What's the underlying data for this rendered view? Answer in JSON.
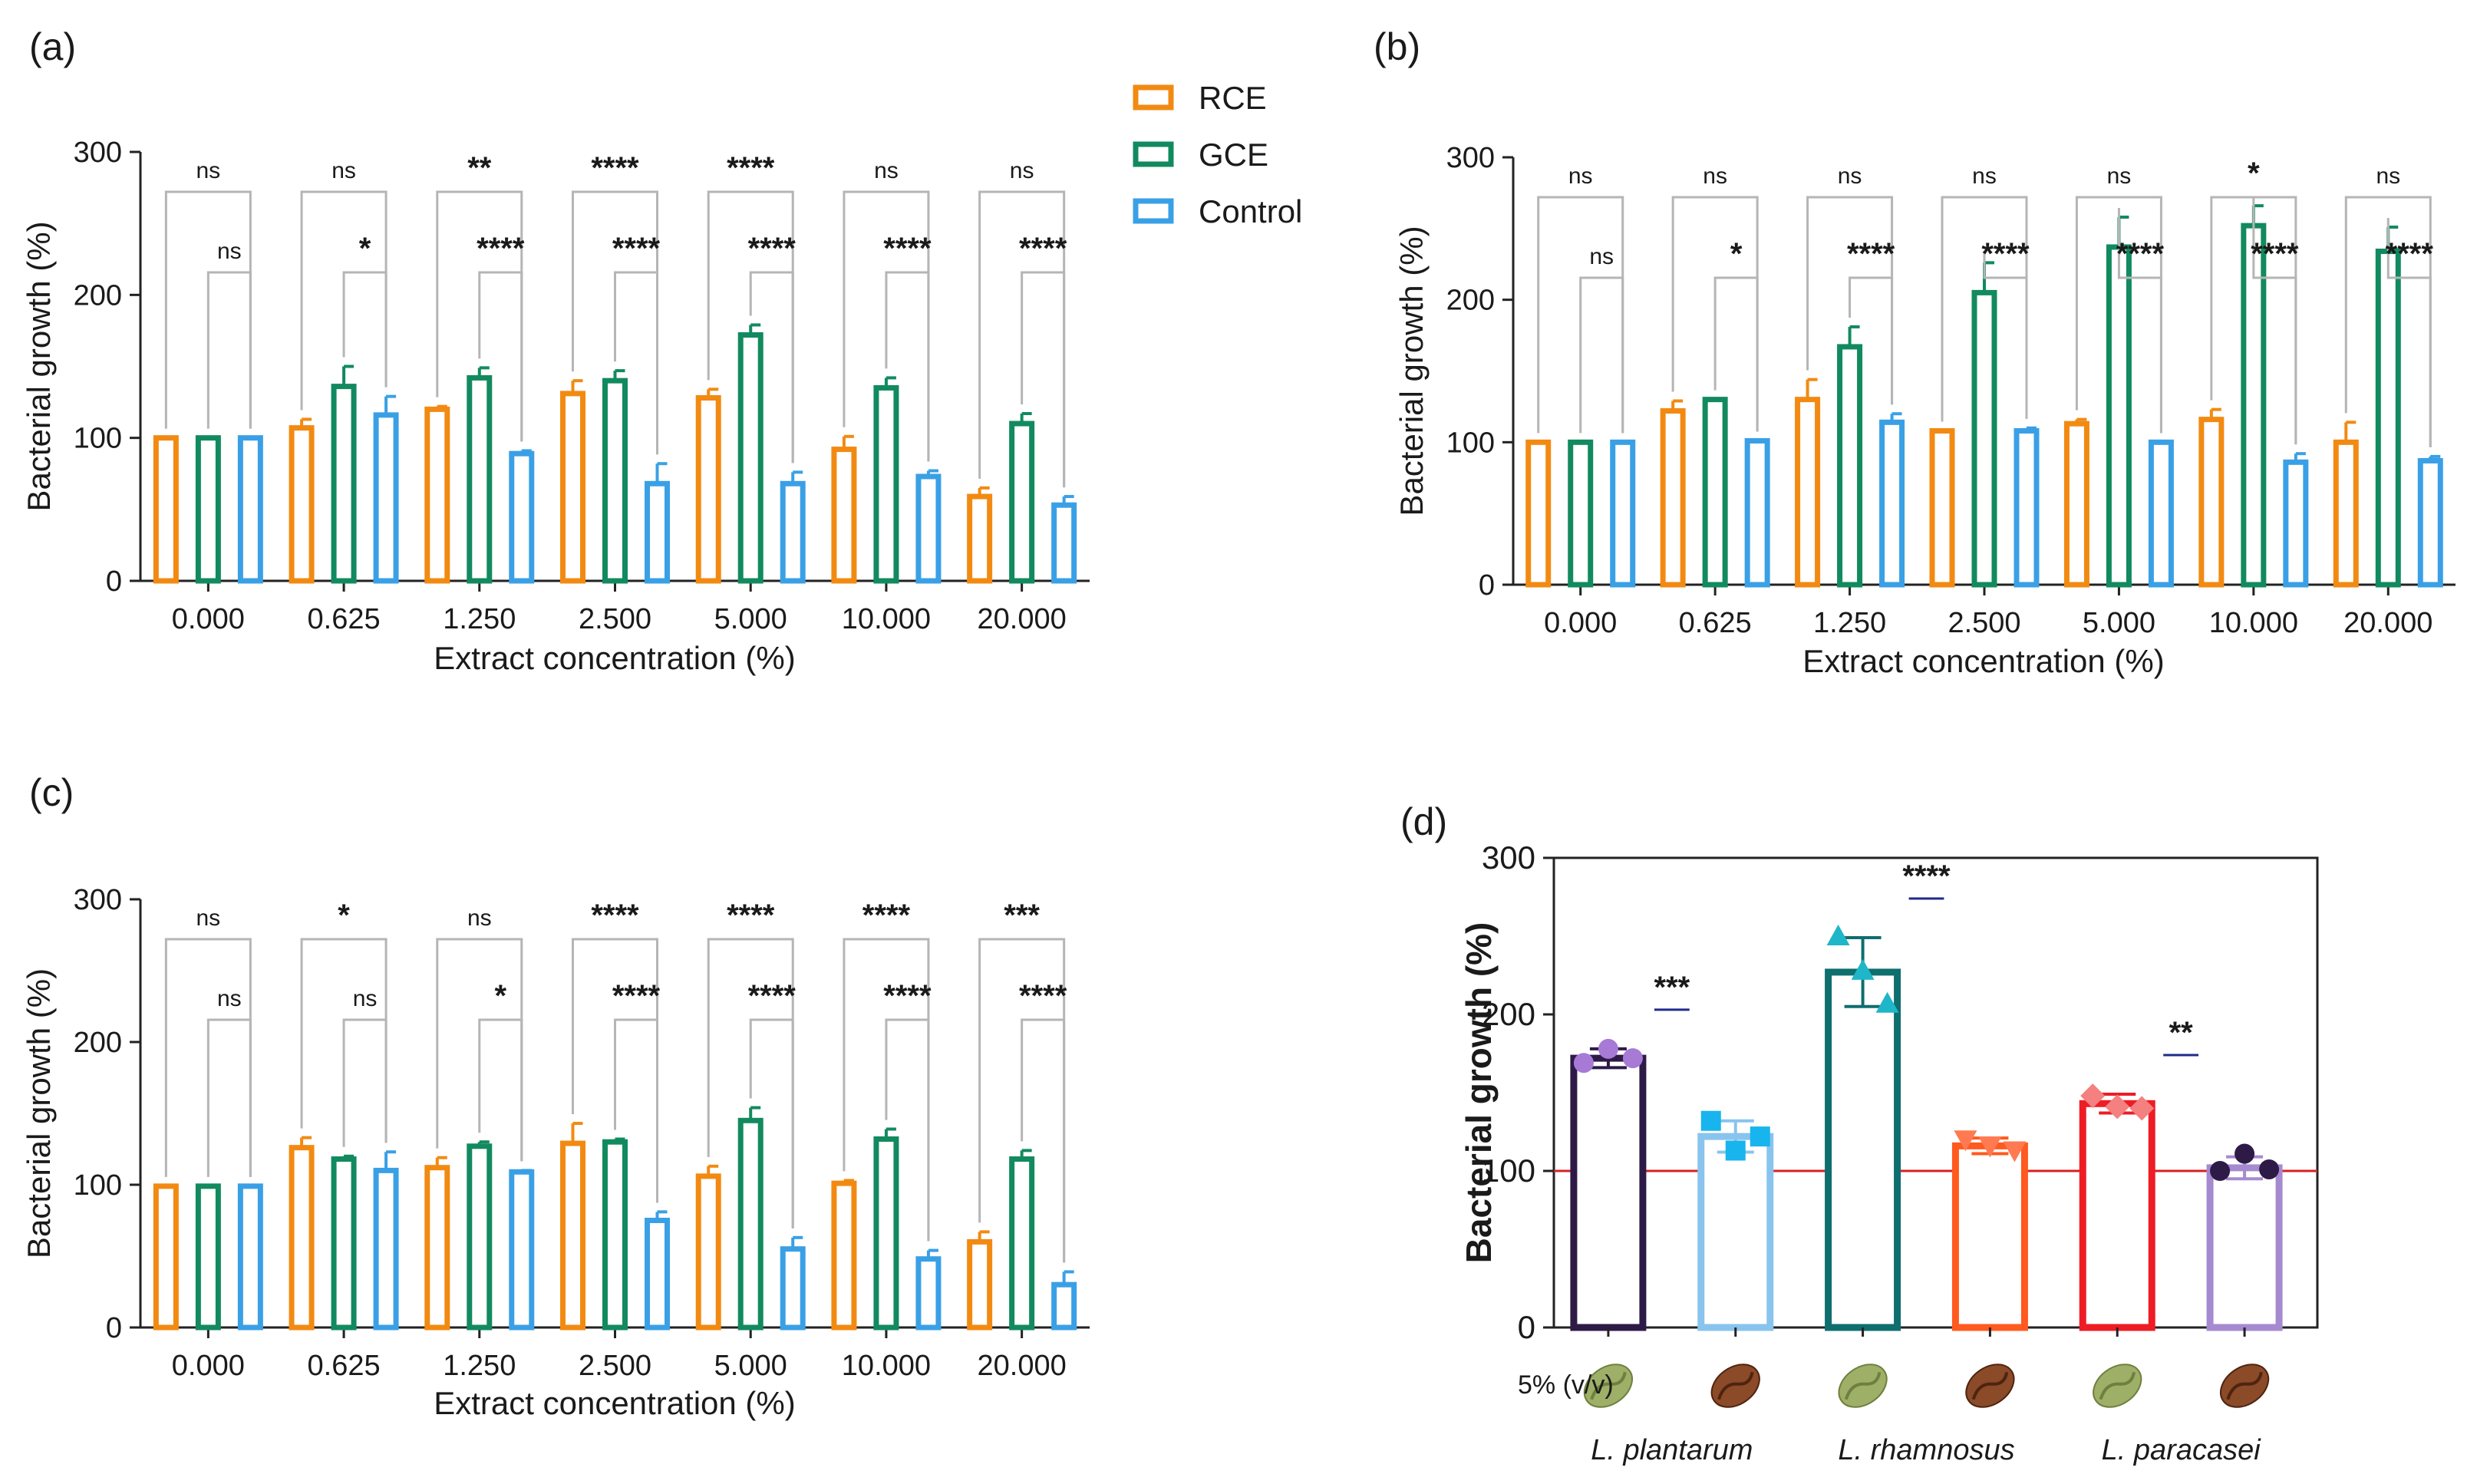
{
  "colors": {
    "RCE": "#f28a12",
    "GCE": "#128a5f",
    "Control": "#3aa0e6",
    "bracket": "#b5b5b5",
    "axis": "#222222"
  },
  "legend": [
    {
      "key": "RCE",
      "label": "RCE"
    },
    {
      "key": "GCE",
      "label": "GCE"
    },
    {
      "key": "Control",
      "label": "Control"
    }
  ],
  "chart_data": [
    {
      "panel": "(a)",
      "type": "bar",
      "xlabel": "Extract concentration (%)",
      "ylabel": "Bacterial growth (%)",
      "ylim": [
        0,
        300
      ],
      "yticks": [
        0,
        100,
        200,
        300
      ],
      "categories": [
        "0.000",
        "0.625",
        "1.250",
        "2.500",
        "5.000",
        "10.000",
        "20.000"
      ],
      "series": [
        {
          "name": "RCE",
          "values": [
            100,
            107,
            120,
            131,
            128,
            92,
            59
          ],
          "errors": [
            0,
            6,
            2,
            9,
            6,
            9,
            6
          ]
        },
        {
          "name": "GCE",
          "values": [
            100,
            136,
            142,
            140,
            172,
            135,
            110
          ],
          "errors": [
            0,
            14,
            7,
            7,
            7,
            7,
            7
          ]
        },
        {
          "name": "Control",
          "values": [
            100,
            116,
            89,
            68,
            68,
            73,
            53
          ],
          "errors": [
            0,
            13,
            2,
            14,
            8,
            4,
            6
          ]
        }
      ],
      "sig_top": [
        "ns",
        "ns",
        "**",
        "****",
        "****",
        "ns",
        "ns"
      ],
      "sig_bottom": [
        "ns",
        "*",
        "****",
        "****",
        "****",
        "****",
        "****"
      ]
    },
    {
      "panel": "(b)",
      "type": "bar",
      "xlabel": "Extract concentration (%)",
      "ylabel": "Bacterial growth (%)",
      "ylim": [
        0,
        300
      ],
      "yticks": [
        0,
        100,
        200,
        300
      ],
      "categories": [
        "0.000",
        "0.625",
        "1.250",
        "2.500",
        "5.000",
        "10.000",
        "20.000"
      ],
      "series": [
        {
          "name": "RCE",
          "values": [
            100,
            122,
            130,
            108,
            113,
            116,
            100
          ],
          "errors": [
            0,
            7,
            14,
            0,
            3,
            7,
            14
          ]
        },
        {
          "name": "GCE",
          "values": [
            100,
            130,
            167,
            205,
            237,
            252,
            234
          ],
          "errors": [
            0,
            0,
            14,
            21,
            21,
            14,
            17
          ]
        },
        {
          "name": "Control",
          "values": [
            100,
            101,
            114,
            108,
            100,
            86,
            87
          ],
          "errors": [
            0,
            0,
            6,
            2,
            0,
            6,
            3
          ]
        }
      ],
      "sig_top": [
        "ns",
        "ns",
        "ns",
        "ns",
        "ns",
        "*",
        "ns"
      ],
      "sig_bottom": [
        "ns",
        "*",
        "****",
        "****",
        "****",
        "****",
        "****"
      ]
    },
    {
      "panel": "(c)",
      "type": "bar",
      "xlabel": "Extract concentration (%)",
      "ylabel": "Bacterial growth (%)",
      "ylim": [
        0,
        300
      ],
      "yticks": [
        0,
        100,
        200,
        300
      ],
      "categories": [
        "0.000",
        "0.625",
        "1.250",
        "2.500",
        "5.000",
        "10.000",
        "20.000"
      ],
      "series": [
        {
          "name": "RCE",
          "values": [
            99,
            126,
            112,
            129,
            106,
            101,
            60
          ],
          "errors": [
            0,
            7,
            7,
            14,
            7,
            2,
            7
          ]
        },
        {
          "name": "GCE",
          "values": [
            99,
            118,
            127,
            130,
            145,
            132,
            118
          ],
          "errors": [
            0,
            2,
            3,
            2,
            9,
            7,
            6
          ]
        },
        {
          "name": "Control",
          "values": [
            99,
            110,
            109,
            75,
            55,
            48,
            30
          ],
          "errors": [
            0,
            13,
            1,
            6,
            8,
            6,
            9
          ]
        }
      ],
      "sig_top": [
        "ns",
        "*",
        "ns",
        "****",
        "****",
        "****",
        "***"
      ],
      "sig_bottom": [
        "ns",
        "ns",
        "*",
        "****",
        "****",
        "****",
        "****"
      ]
    },
    {
      "panel": "(d)",
      "type": "bar",
      "ylabel": "Bacterial growth (%)",
      "ylim": [
        0,
        300
      ],
      "yticks": [
        0,
        100,
        200,
        300
      ],
      "row_label": "5% (v/v)",
      "reference_line": 100,
      "bars": [
        {
          "species": "L. plantarum",
          "extract": "green",
          "value": 172,
          "error": 6,
          "color": "#2e1a47",
          "points": [
            169,
            178,
            172
          ],
          "marker": "circle",
          "mcolor": "#a77ad6"
        },
        {
          "species": "L. plantarum",
          "extract": "roasted",
          "value": 122,
          "error": 10,
          "color": "#88c4ee",
          "points": [
            132,
            113,
            122
          ],
          "marker": "square",
          "mcolor": "#18b4ee"
        },
        {
          "species": "L. rhamnosus",
          "extract": "green",
          "value": 227,
          "error": 22,
          "color": "#0f6e6e",
          "points": [
            250,
            228,
            207
          ],
          "marker": "triangle",
          "mcolor": "#1eb6c8"
        },
        {
          "species": "L. rhamnosus",
          "extract": "roasted",
          "value": 116,
          "error": 5,
          "color": "#ff5a1f",
          "points": [
            120,
            116,
            113
          ],
          "marker": "tri-down",
          "mcolor": "#ff7a50"
        },
        {
          "species": "L. paracasei",
          "extract": "green",
          "value": 143,
          "error": 6,
          "color": "#ee1c24",
          "points": [
            148,
            141,
            140
          ],
          "marker": "diamond",
          "mcolor": "#f48080"
        },
        {
          "species": "L. paracasei",
          "extract": "roasted",
          "value": 102,
          "error": 7,
          "color": "#a68ad0",
          "points": [
            100,
            111,
            101
          ],
          "marker": "circle",
          "mcolor": "#2e1a47"
        }
      ],
      "comparisons": [
        {
          "label": "***"
        },
        {
          "label": "****"
        },
        {
          "label": "**"
        }
      ],
      "species_labels": [
        "L. plantarum",
        "L. rhamnosus",
        "L. paracasei"
      ]
    }
  ]
}
